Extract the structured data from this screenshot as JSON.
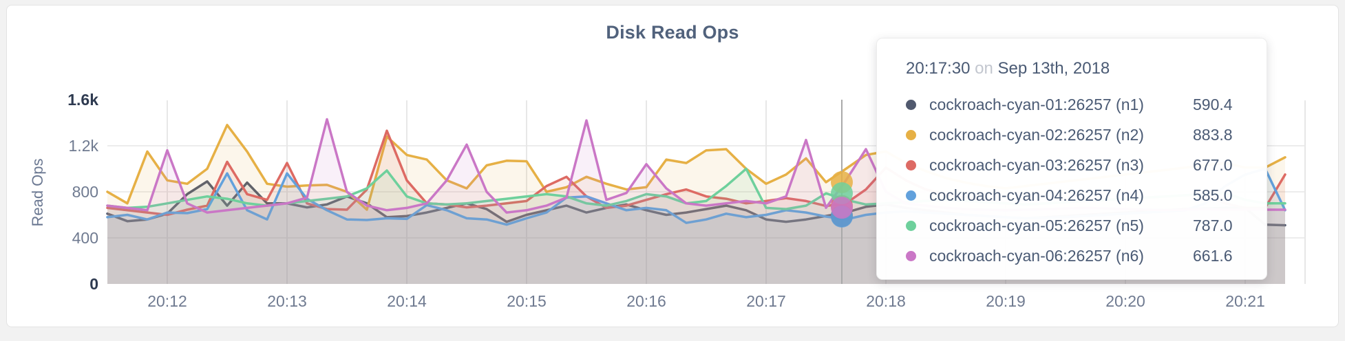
{
  "page": {
    "background": "#f2f2f2",
    "panel_background": "#ffffff",
    "panel_border": "#e3e3e3"
  },
  "chart": {
    "title": "Disk Read Ops",
    "y_axis": {
      "label": "Read Ops",
      "ticks": [
        {
          "label": "1.6k",
          "value": 1600,
          "emph": true
        },
        {
          "label": "1.2k",
          "value": 1200,
          "emph": false
        },
        {
          "label": "800",
          "value": 800,
          "emph": false
        },
        {
          "label": "400",
          "value": 400,
          "emph": false
        },
        {
          "label": "0",
          "value": 0,
          "emph": true
        }
      ]
    },
    "x_axis": {
      "ticks": [
        "20:12",
        "20:13",
        "20:14",
        "20:15",
        "20:16",
        "20:17",
        "20:18",
        "20:19",
        "20:20",
        "20:21"
      ]
    },
    "colors": {
      "grid_h": "#ececec",
      "grid_v": "#e7e7e7",
      "crosshair": "#a9a9a9",
      "tick_text": "#6f7a90",
      "tick_text_emph": "#2e3a50",
      "axis_label": "#6b7892"
    }
  },
  "tooltip": {
    "time": "20:17:30",
    "conj": "on",
    "date": "Sep 13th, 2018",
    "rows": [
      {
        "name": "cockroach-cyan-01:26257 (n1)",
        "value": "590.4",
        "color": "#51596e"
      },
      {
        "name": "cockroach-cyan-02:26257 (n2)",
        "value": "883.8",
        "color": "#e6b045"
      },
      {
        "name": "cockroach-cyan-03:26257 (n3)",
        "value": "677.0",
        "color": "#dd6a63"
      },
      {
        "name": "cockroach-cyan-04:26257 (n4)",
        "value": "585.0",
        "color": "#62a1dc"
      },
      {
        "name": "cockroach-cyan-05:26257 (n5)",
        "value": "787.0",
        "color": "#6ed09c"
      },
      {
        "name": "cockroach-cyan-06:26257 (n6)",
        "value": "661.6",
        "color": "#ca77c6"
      }
    ]
  },
  "chart_data": {
    "type": "area",
    "title": "Disk Read Ops",
    "ylabel": "Read Ops",
    "ylim": [
      0,
      1600
    ],
    "grid_h_values": [
      400,
      800,
      1200
    ],
    "x_start": "20:11:30",
    "x_end": "20:21:20",
    "x_interval_seconds": 10,
    "x_tick_labels": [
      "20:12",
      "20:13",
      "20:14",
      "20:15",
      "20:16",
      "20:17",
      "20:18",
      "20:19",
      "20:20",
      "20:21"
    ],
    "legend_position": "tooltip",
    "hover": {
      "time": "20:17:30",
      "date": "Sep 13th, 2018",
      "index": 36
    },
    "series": [
      {
        "name": "cockroach-cyan-01:26257 (n1)",
        "color": "#51596e",
        "hover_value": 590.4,
        "values": [
          610,
          545,
          560,
          610,
          780,
          890,
          680,
          880,
          700,
          700,
          665,
          690,
          760,
          700,
          580,
          590,
          620,
          660,
          700,
          650,
          540,
          600,
          640,
          680,
          620,
          660,
          690,
          640,
          600,
          620,
          650,
          680,
          640,
          560,
          540,
          560,
          590.4,
          620,
          670,
          690,
          660,
          640,
          620,
          600,
          590,
          580,
          570,
          580,
          590,
          600,
          610,
          620,
          630,
          640,
          650,
          655,
          660,
          660,
          515,
          510
        ]
      },
      {
        "name": "cockroach-cyan-02:26257 (n2)",
        "color": "#e6b045",
        "hover_value": 883.8,
        "values": [
          800,
          700,
          1150,
          900,
          870,
          1000,
          1380,
          1150,
          870,
          845,
          855,
          860,
          800,
          645,
          1280,
          1120,
          1080,
          900,
          830,
          1030,
          1070,
          1065,
          800,
          840,
          930,
          870,
          820,
          840,
          1080,
          1050,
          1160,
          1170,
          1000,
          870,
          950,
          1090,
          883.8,
          1000,
          1120,
          1150,
          1050,
          980,
          920,
          880,
          850,
          830,
          850,
          870,
          890,
          910,
          930,
          950,
          970,
          990,
          1010,
          1030,
          1050,
          1010,
          1010,
          1100
        ]
      },
      {
        "name": "cockroach-cyan-03:26257 (n3)",
        "color": "#dd6a63",
        "hover_value": 677.0,
        "values": [
          660,
          640,
          620,
          600,
          645,
          680,
          1060,
          780,
          730,
          1050,
          700,
          650,
          645,
          820,
          1330,
          900,
          700,
          690,
          665,
          680,
          700,
          720,
          850,
          930,
          760,
          660,
          680,
          730,
          780,
          820,
          760,
          740,
          700,
          720,
          745,
          720,
          677,
          700,
          820,
          1010,
          900,
          820,
          780,
          750,
          720,
          700,
          690,
          700,
          710,
          720,
          730,
          740,
          750,
          760,
          770,
          780,
          700,
          660,
          660,
          950
        ]
      },
      {
        "name": "cockroach-cyan-04:26257 (n4)",
        "color": "#62a1dc",
        "hover_value": 585.0,
        "values": [
          580,
          600,
          560,
          620,
          615,
          650,
          960,
          640,
          560,
          960,
          740,
          640,
          560,
          555,
          570,
          565,
          685,
          640,
          570,
          560,
          515,
          570,
          620,
          750,
          760,
          700,
          640,
          660,
          640,
          530,
          560,
          610,
          580,
          600,
          640,
          620,
          585,
          560,
          600,
          620,
          630,
          620,
          610,
          600,
          590,
          580,
          570,
          575,
          580,
          590,
          600,
          610,
          620,
          630,
          640,
          700,
          850,
          950,
          1000,
          640
        ]
      },
      {
        "name": "cockroach-cyan-05:26257 (n5)",
        "color": "#6ed09c",
        "hover_value": 787.0,
        "values": [
          680,
          660,
          670,
          700,
          730,
          760,
          740,
          700,
          680,
          700,
          720,
          740,
          760,
          830,
          985,
          760,
          700,
          690,
          700,
          720,
          740,
          760,
          780,
          760,
          700,
          680,
          720,
          780,
          760,
          700,
          720,
          850,
          1000,
          660,
          650,
          680,
          787,
          730,
          690,
          700,
          710,
          720,
          730,
          720,
          710,
          700,
          690,
          700,
          710,
          720,
          730,
          740,
          750,
          760,
          770,
          780,
          790,
          730,
          700,
          700
        ]
      },
      {
        "name": "cockroach-cyan-06:26257 (n6)",
        "color": "#ca77c6",
        "hover_value": 661.6,
        "values": [
          680,
          660,
          640,
          1160,
          700,
          620,
          640,
          660,
          680,
          700,
          750,
          1430,
          800,
          680,
          640,
          660,
          700,
          900,
          1210,
          800,
          620,
          640,
          680,
          750,
          1420,
          730,
          790,
          1040,
          830,
          700,
          680,
          700,
          720,
          700,
          760,
          1250,
          661.6,
          900,
          1170,
          800,
          700,
          680,
          660,
          650,
          645,
          640,
          645,
          650,
          655,
          660,
          655,
          650,
          645,
          640,
          645,
          650,
          645,
          645,
          645,
          645
        ]
      }
    ]
  }
}
